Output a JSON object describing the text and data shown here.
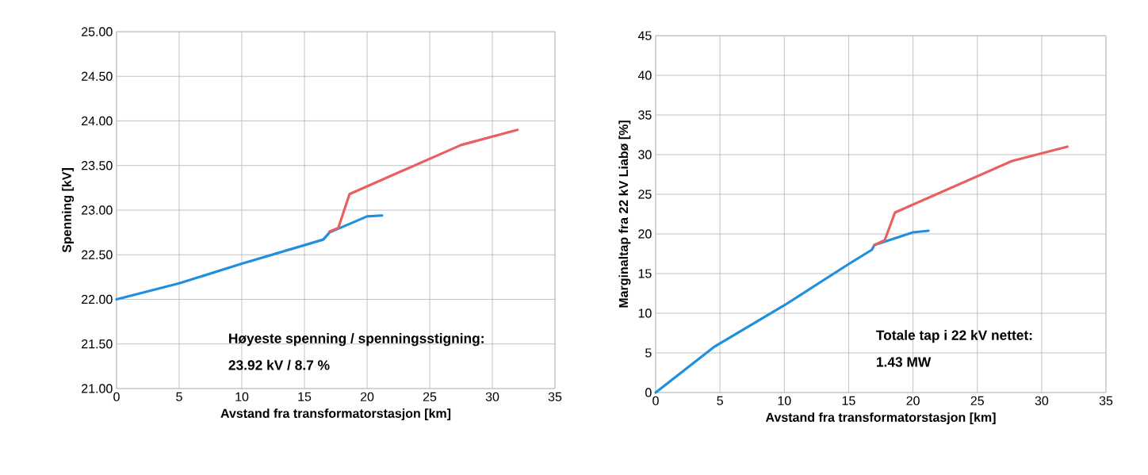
{
  "chart_data": [
    {
      "type": "line",
      "xlabel": "Avstand fra transformatorstasjon [km]",
      "ylabel": "Spenning  [kV]",
      "xlim": [
        0,
        35
      ],
      "ylim": [
        21,
        25
      ],
      "xticks": [
        0,
        5,
        10,
        15,
        20,
        25,
        30,
        35
      ],
      "yticks": [
        {
          "value": 21,
          "label": "21.00"
        },
        {
          "value": 21.5,
          "label": "21.50"
        },
        {
          "value": 22,
          "label": "22.00"
        },
        {
          "value": 22.5,
          "label": "22.50"
        },
        {
          "value": 23,
          "label": "23.00"
        },
        {
          "value": 23.5,
          "label": "23.50"
        },
        {
          "value": 24,
          "label": "24.00"
        },
        {
          "value": 24.5,
          "label": "24.50"
        },
        {
          "value": 25,
          "label": "25.00"
        }
      ],
      "grid": true,
      "annotations": [
        "Høyeste spenning / spenningsstigning:",
        "23.92 kV / 8.7 %"
      ],
      "series": [
        {
          "color": "#1f8fde",
          "x": [
            0,
            5,
            10,
            16.5,
            17,
            20,
            21.2
          ],
          "values": [
            22.0,
            22.18,
            22.4,
            22.67,
            22.75,
            22.93,
            22.94
          ]
        },
        {
          "color": "#e8605f",
          "x": [
            17,
            17.7,
            18.6,
            27.5,
            32
          ],
          "values": [
            22.76,
            22.8,
            23.18,
            23.73,
            23.9
          ]
        }
      ]
    },
    {
      "type": "line",
      "xlabel": "Avstand fra transformatorstasjon [km]",
      "ylabel": "Marginaltap fra 22 kV Liabø  [%]",
      "xlim": [
        0,
        35
      ],
      "ylim": [
        0,
        45
      ],
      "xticks": [
        0,
        5,
        10,
        15,
        20,
        25,
        30,
        35
      ],
      "yticks": [
        0,
        5,
        10,
        15,
        20,
        25,
        30,
        35,
        40,
        45
      ],
      "grid": true,
      "annotations": [
        "Totale tap i 22 kV nettet:",
        "1.43 MW"
      ],
      "series": [
        {
          "color": "#1f8fde",
          "x": [
            0,
            4.5,
            10,
            15,
            16.8,
            17,
            20,
            21.2
          ],
          "values": [
            0,
            5.7,
            11,
            16.2,
            18,
            18.6,
            20.2,
            20.4
          ]
        },
        {
          "color": "#e8605f",
          "x": [
            17,
            17.8,
            18.6,
            27.7,
            32
          ],
          "values": [
            18.6,
            19.2,
            22.7,
            29.2,
            31
          ]
        }
      ]
    }
  ]
}
